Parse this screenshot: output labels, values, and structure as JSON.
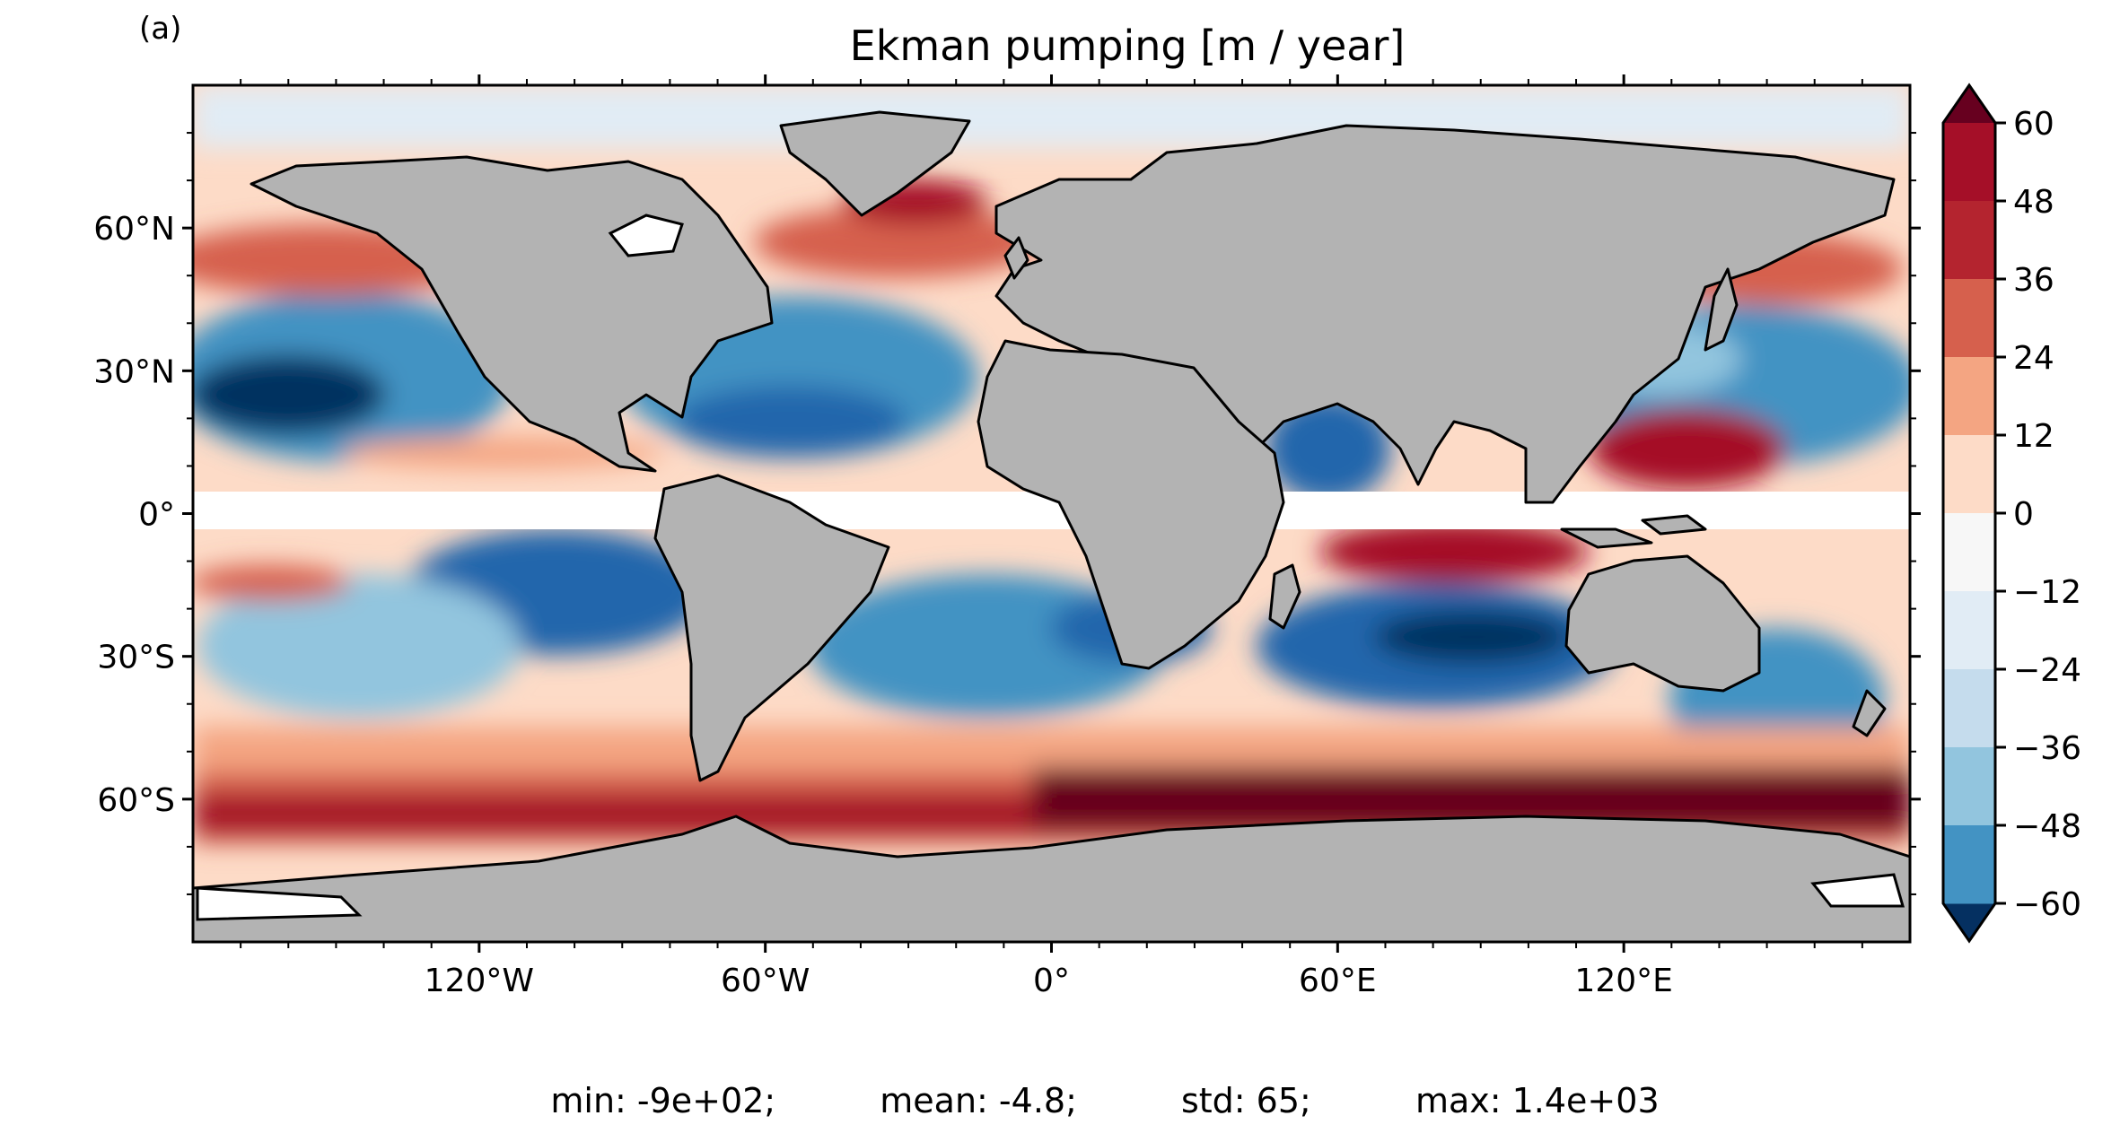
{
  "panel_label": "(a)",
  "title": "Ekman pumping [m / year]",
  "lat_labels": [
    "60°N",
    "30°N",
    "0°",
    "30°S",
    "60°S"
  ],
  "lat_values": [
    60,
    30,
    0,
    -30,
    -60
  ],
  "lon_labels": [
    "120°W",
    "60°W",
    "0°",
    "60°E",
    "120°E"
  ],
  "lon_values": [
    -120,
    -60,
    0,
    60,
    120
  ],
  "map_extent": {
    "lon": [
      -180,
      180
    ],
    "lat": [
      -90,
      90
    ]
  },
  "colorbar": {
    "tick_labels": [
      "60",
      "48",
      "36",
      "24",
      "12",
      "0",
      "−12",
      "−24",
      "−36",
      "−48",
      "−60"
    ],
    "tick_values": [
      60,
      48,
      36,
      24,
      12,
      0,
      -12,
      -24,
      -36,
      -48,
      -60
    ],
    "extend": "both",
    "bin_colors_top_to_bottom": [
      "#a50f28",
      "#b4242f",
      "#d6604d",
      "#f4a582",
      "#fddbc7",
      "#f7f7f7",
      "#e1ecf5",
      "#c5dced",
      "#92c5de",
      "#4393c3",
      "#2166ac"
    ],
    "upper_extension_color": "#67001f",
    "lower_extension_color": "#053061"
  },
  "colors": {
    "land": "#b3b3b3",
    "coastline": "#000000",
    "equatorial_mask": "#ffffff",
    "sea_ice": "#ffffff"
  },
  "stats": {
    "min": "min: -9e+02;",
    "mean": "mean: -4.8;",
    "std": "std: 65;",
    "max": "max: 1.4e+03"
  }
}
